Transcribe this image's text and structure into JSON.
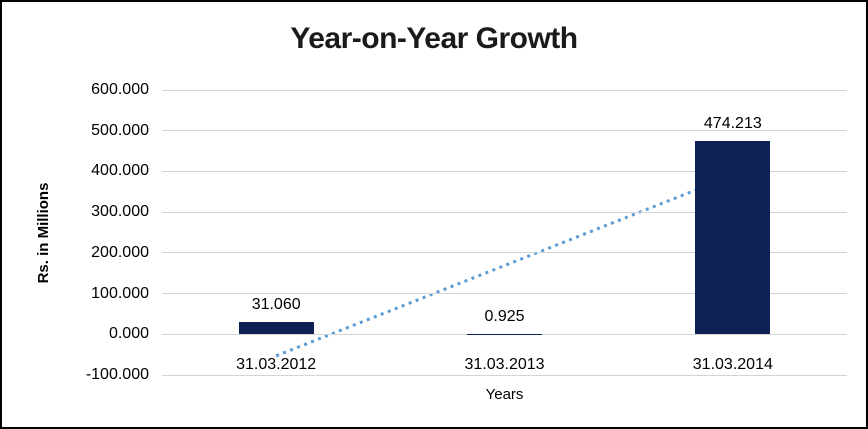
{
  "chart_data": {
    "type": "bar",
    "title": "Year-on-Year Growth",
    "xlabel": "Years",
    "ylabel": "Rs. in Millions",
    "categories": [
      "31.03.2012",
      "31.03.2013",
      "31.03.2014"
    ],
    "values": [
      31.06,
      0.925,
      474.213
    ],
    "value_labels": [
      "31.060",
      "0.925",
      "474.213"
    ],
    "ylim": [
      -100,
      600
    ],
    "y_ticks": [
      600,
      500,
      400,
      300,
      200,
      100,
      0,
      -100
    ],
    "y_tick_labels": [
      "600.000",
      "500.000",
      "400.000",
      "300.000",
      "200.000",
      "100.000",
      "0.000",
      "-100.000"
    ],
    "grid": true,
    "legend": false,
    "colors": {
      "bar": "#0d2154",
      "trendline": "#5b9bd5",
      "gridline": "#d4d4d4",
      "text": "#000000",
      "frame_border": "#000000"
    },
    "trendline": {
      "type": "linear",
      "style": "dotted",
      "start_value": -52.9,
      "end_value": 390.3
    }
  }
}
